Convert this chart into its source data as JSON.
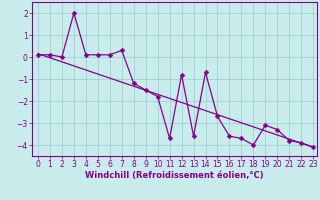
{
  "xlabel": "Windchill (Refroidissement éolien,°C)",
  "bg_color": "#c8ecec",
  "line_color": "#880088",
  "grid_color": "#99cccc",
  "xlim": [
    -0.5,
    23.3
  ],
  "ylim": [
    -4.5,
    2.5
  ],
  "yticks": [
    2,
    1,
    0,
    -1,
    -2,
    -3,
    -4
  ],
  "xticks": [
    0,
    1,
    2,
    3,
    4,
    5,
    6,
    7,
    8,
    9,
    10,
    11,
    12,
    13,
    14,
    15,
    16,
    17,
    18,
    19,
    20,
    21,
    22,
    23
  ],
  "series1_x": [
    0,
    1,
    2,
    3,
    4,
    5,
    6,
    7,
    8,
    9,
    10,
    11,
    12,
    13,
    14,
    15,
    16,
    17,
    18,
    19,
    20,
    21,
    22,
    23
  ],
  "series1_y": [
    0.1,
    0.1,
    0.0,
    2.0,
    0.1,
    0.1,
    0.1,
    0.3,
    -1.2,
    -1.5,
    -1.8,
    -3.7,
    -0.8,
    -3.6,
    -0.7,
    -2.7,
    -3.6,
    -3.7,
    -4.0,
    -3.1,
    -3.3,
    -3.8,
    -3.9,
    -4.1
  ],
  "trend_x": [
    0,
    23
  ],
  "trend_y": [
    0.15,
    -4.1
  ],
  "markersize": 2.5,
  "tick_fontsize": 5.5,
  "xlabel_fontsize": 6.0
}
